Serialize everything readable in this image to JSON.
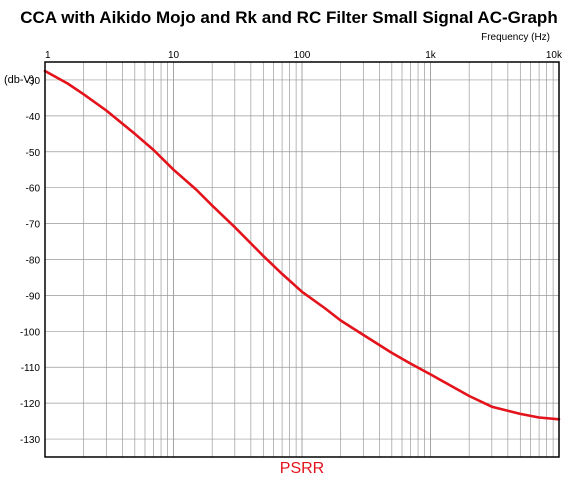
{
  "chart_data": {
    "type": "line",
    "title": "CCA with Aikido Mojo and Rk and RC Filter Small Signal AC-Graph",
    "xlabel": "Frequency  (Hz)",
    "ylabel": "(db-V)",
    "x_scale": "log",
    "xlim": [
      1,
      10000
    ],
    "ylim": [
      -135,
      -25
    ],
    "x_ticks": [
      1,
      10,
      100,
      1000,
      10000
    ],
    "x_tick_labels": [
      "1",
      "10",
      "100",
      "1k",
      "10k"
    ],
    "y_ticks": [
      -30,
      -40,
      -50,
      -60,
      -70,
      -80,
      -90,
      -100,
      -110,
      -120,
      -130
    ],
    "y_tick_labels": [
      "-30",
      "-40",
      "-50",
      "-60",
      "-70",
      "-80",
      "-90",
      "-100",
      "-110",
      "-120",
      "-130"
    ],
    "grid": true,
    "colors": {
      "series": "#e3121b",
      "grid": "#9a9a9a",
      "frame": "#000000"
    },
    "series": [
      {
        "name": "PSRR",
        "x": [
          1,
          1.5,
          2,
          3,
          5,
          7,
          10,
          15,
          20,
          30,
          50,
          70,
          100,
          150,
          200,
          300,
          500,
          700,
          1000,
          1500,
          2000,
          3000,
          5000,
          7000,
          10000
        ],
        "y": [
          -27.5,
          -31,
          -34,
          -38.5,
          -45,
          -49.5,
          -55,
          -60.5,
          -65,
          -71,
          -79,
          -84,
          -89,
          -93.5,
          -97,
          -101,
          -106,
          -109,
          -112,
          -115.5,
          -118,
          -121,
          -123,
          -124,
          -124.5
        ]
      }
    ]
  }
}
